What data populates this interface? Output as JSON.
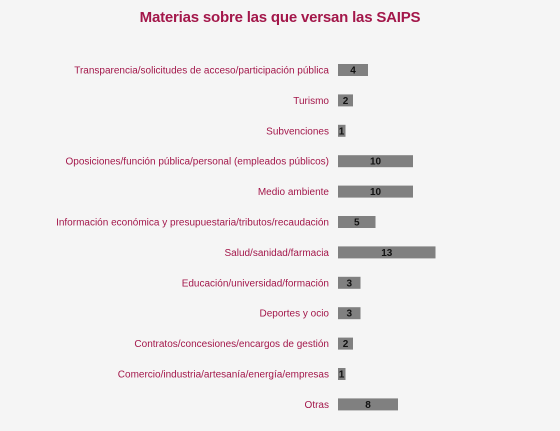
{
  "chart_data": {
    "type": "bar",
    "orientation": "horizontal",
    "title": "Materias sobre las que versan las SAIPS",
    "categories": [
      "Transparencia/solicitudes de acceso/participación pública",
      "Turismo",
      "Subvenciones",
      "Oposiciones/función pública/personal (empleados públicos)",
      "Medio ambiente",
      "Información económica y presupuestaria/tributos/recaudación",
      "Salud/sanidad/farmacia",
      "Educación/universidad/formación",
      "Deportes y ocio",
      "Contratos/concesiones/encargos de gestión",
      "Comercio/industria/artesanía/energía/empresas",
      "Otras"
    ],
    "values": [
      4,
      2,
      1,
      10,
      10,
      5,
      13,
      3,
      3,
      2,
      1,
      8
    ],
    "xlabel": "",
    "ylabel": "",
    "grid": false,
    "legend": "none",
    "colors": {
      "bar": "#808080",
      "title": "#a3174a",
      "label": "#a3174a",
      "value_label": "#111111",
      "background": "#f5f5f5"
    }
  }
}
